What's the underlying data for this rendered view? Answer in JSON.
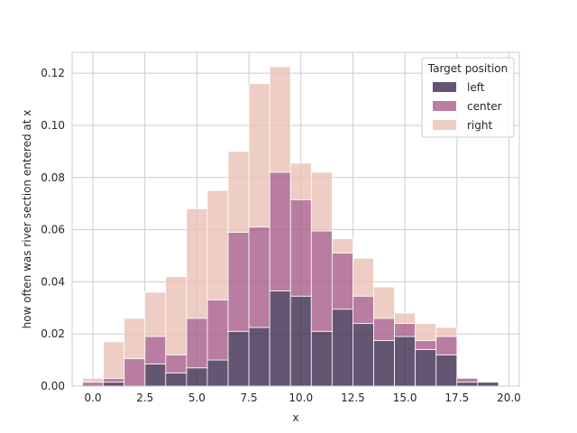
{
  "chart_data": {
    "type": "bar",
    "stacked": true,
    "xlabel": "x",
    "ylabel": "how often was river section entered at x",
    "xlim": [
      -1,
      20.5
    ],
    "ylim": [
      0,
      0.128
    ],
    "xticks": [
      "0.0",
      "2.5",
      "5.0",
      "7.5",
      "10.0",
      "12.5",
      "15.0",
      "17.5",
      "20.0"
    ],
    "xtick_values": [
      0,
      2.5,
      5,
      7.5,
      10,
      12.5,
      15,
      17.5,
      20
    ],
    "yticks": [
      "0.00",
      "0.02",
      "0.04",
      "0.06",
      "0.08",
      "0.10",
      "0.12"
    ],
    "ytick_values": [
      0,
      0.02,
      0.04,
      0.06,
      0.08,
      0.1,
      0.12
    ],
    "grid": true,
    "legend": {
      "title": "Target position",
      "placement": "top-right"
    },
    "bin_starts": [
      -0.5,
      0.5,
      1.5,
      2.5,
      3.5,
      4.5,
      5.5,
      6.5,
      7.5,
      8.5,
      9.5,
      10.5,
      11.5,
      12.5,
      13.5,
      14.5,
      15.5,
      16.5,
      17.5,
      18.5
    ],
    "bin_width": 1.0,
    "series": [
      {
        "name": "left",
        "color": "#3d2b4f",
        "values": [
          0.0,
          0.0015,
          0.0,
          0.0085,
          0.005,
          0.007,
          0.01,
          0.021,
          0.0225,
          0.0365,
          0.0345,
          0.021,
          0.0295,
          0.024,
          0.0175,
          0.019,
          0.014,
          0.012,
          0.0015,
          0.0015
        ]
      },
      {
        "name": "center",
        "color": "#a85c8a",
        "values": [
          0.0015,
          0.0015,
          0.0105,
          0.0105,
          0.007,
          0.019,
          0.023,
          0.038,
          0.0385,
          0.0455,
          0.037,
          0.0385,
          0.0215,
          0.0105,
          0.0085,
          0.005,
          0.0035,
          0.007,
          0.0015,
          0.0
        ]
      },
      {
        "name": "right",
        "color": "#e8c1b5",
        "values": [
          0.0015,
          0.014,
          0.0155,
          0.017,
          0.03,
          0.042,
          0.042,
          0.031,
          0.055,
          0.0405,
          0.014,
          0.0225,
          0.0055,
          0.0145,
          0.012,
          0.004,
          0.0065,
          0.0035,
          0.0,
          0.0
        ]
      }
    ]
  }
}
